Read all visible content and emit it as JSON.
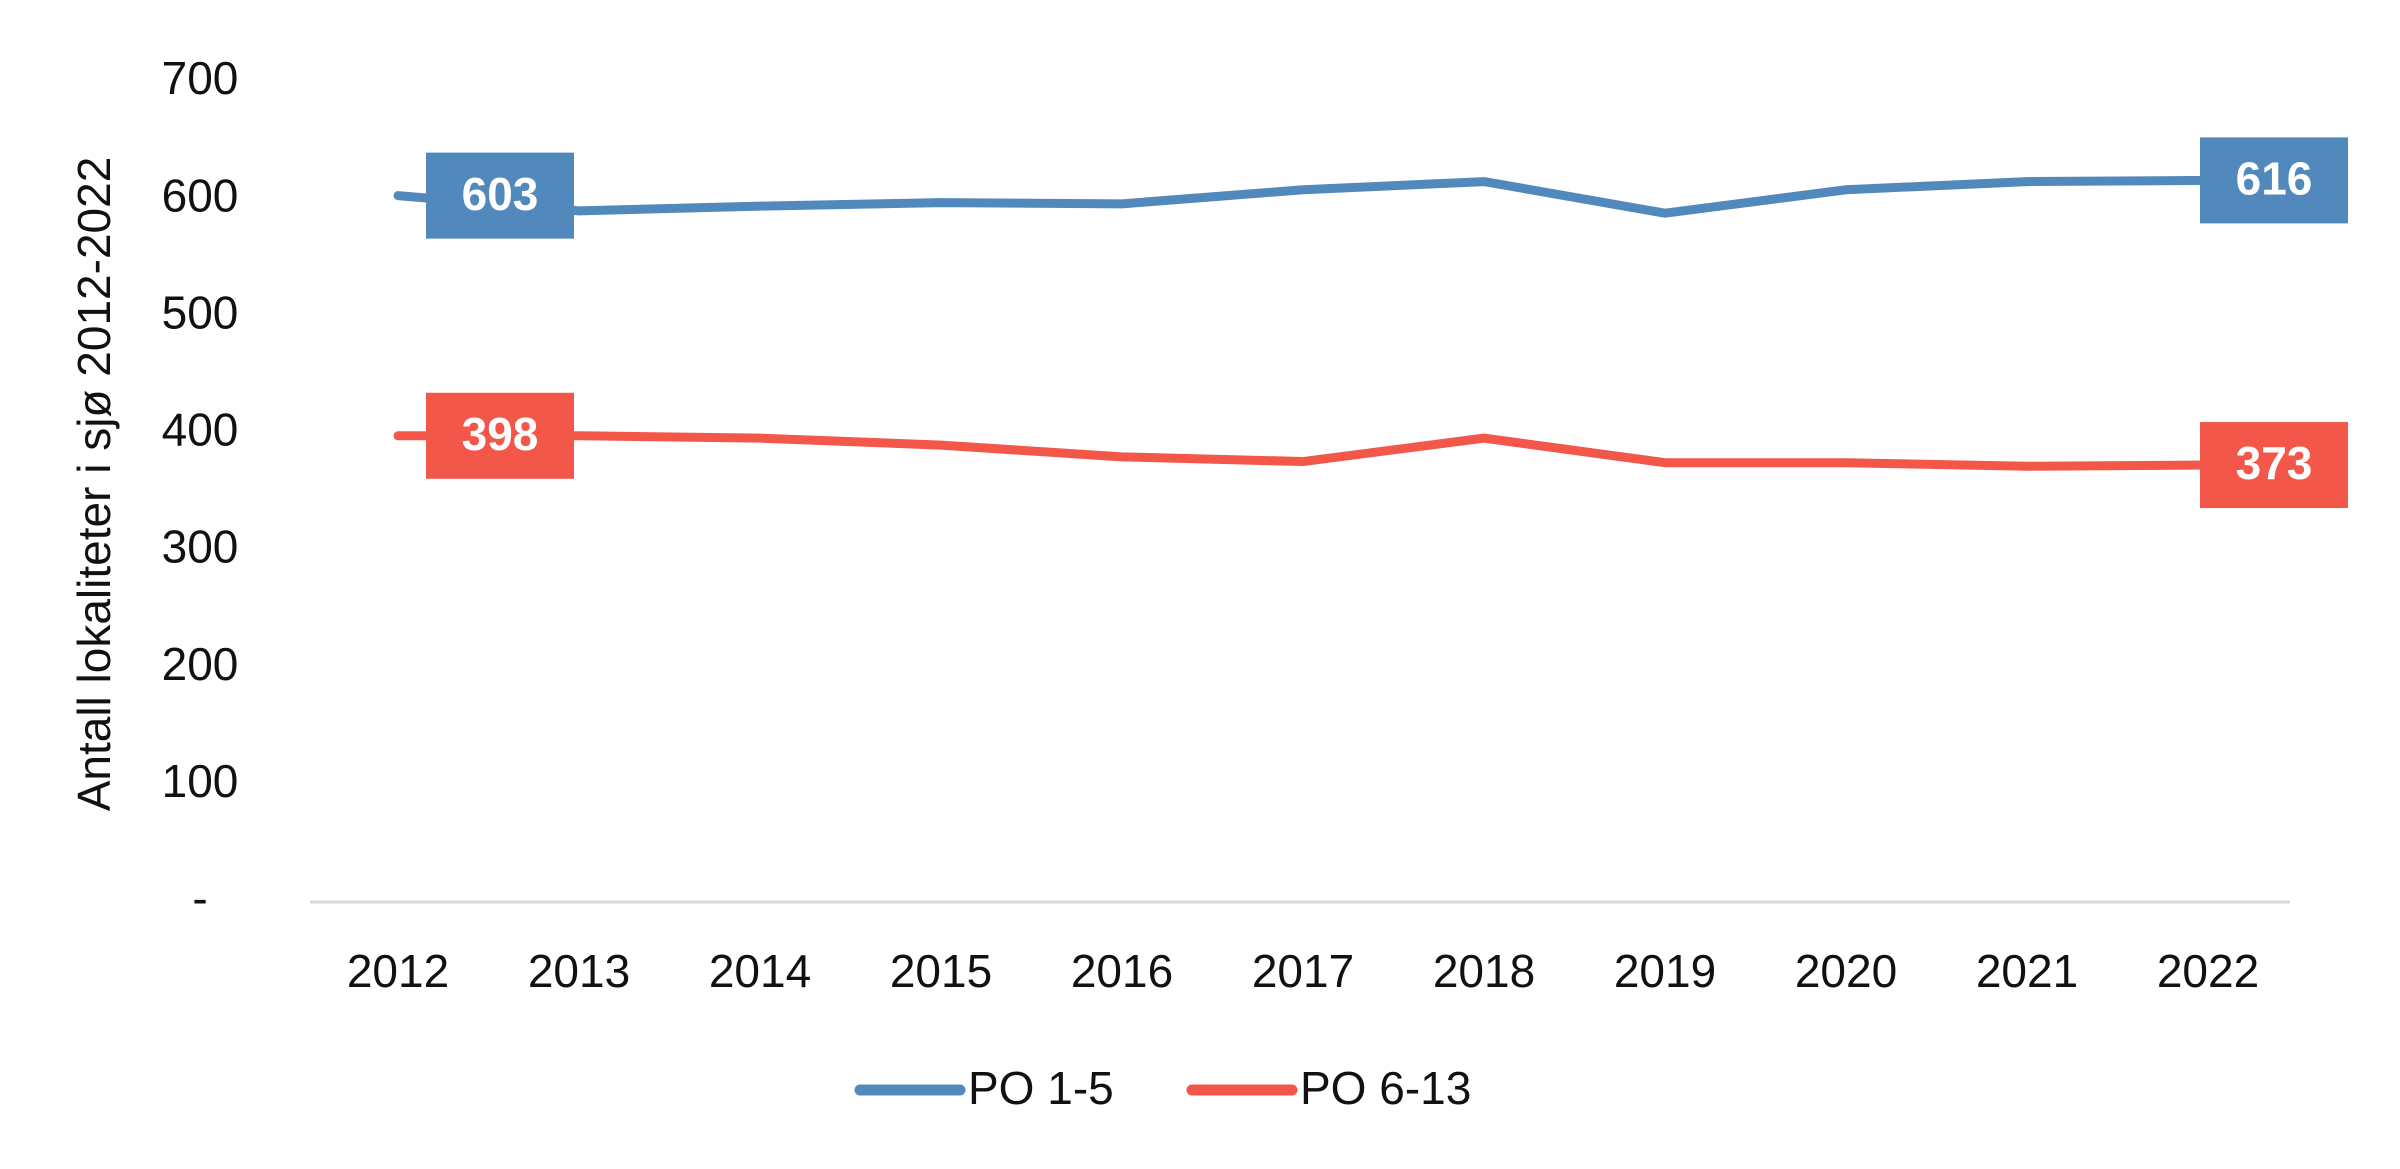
{
  "chart_data": {
    "type": "line",
    "title": "",
    "xlabel": "",
    "ylabel": "Antall lokaliteter i sjø 2012-2022",
    "x": [
      "2012",
      "2013",
      "2014",
      "2015",
      "2016",
      "2017",
      "2018",
      "2019",
      "2020",
      "2021",
      "2022"
    ],
    "ylim": [
      0,
      700
    ],
    "yticks": [
      0,
      100,
      200,
      300,
      400,
      500,
      600,
      700
    ],
    "ytick_labels": [
      "-",
      "100",
      "200",
      "300",
      "400",
      "500",
      "600",
      "700"
    ],
    "grid": false,
    "legend_position": "bottom-center",
    "series": [
      {
        "name": "PO 1-5",
        "color": "#5289BC",
        "values": [
          603,
          590,
          594,
          597,
          596,
          608,
          615,
          588,
          608,
          615,
          616
        ],
        "labels": [
          {
            "index": 0,
            "text": "603"
          },
          {
            "index": 10,
            "text": "616"
          }
        ]
      },
      {
        "name": "PO 6-13",
        "color": "#F2574A",
        "values": [
          398,
          398,
          396,
          390,
          380,
          376,
          396,
          375,
          375,
          372,
          373
        ],
        "labels": [
          {
            "index": 0,
            "text": "398"
          },
          {
            "index": 10,
            "text": "373"
          }
        ]
      }
    ]
  }
}
